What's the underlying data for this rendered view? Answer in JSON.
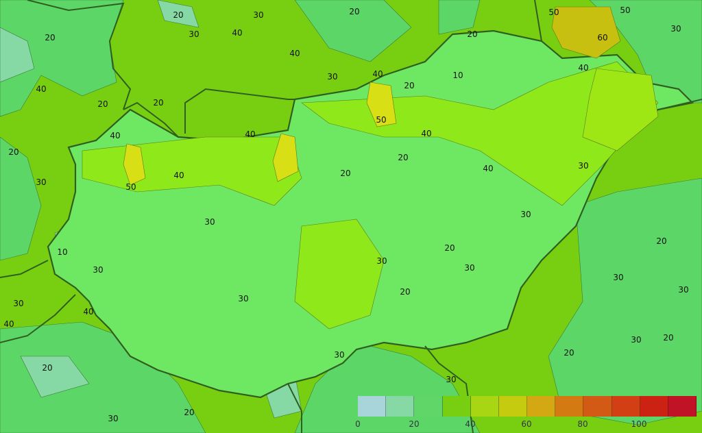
{
  "map": {
    "contour_labels": [
      "20",
      "30",
      "20",
      "30",
      "40",
      "40",
      "20",
      "50",
      "50",
      "30",
      "40",
      "20",
      "60",
      "40",
      "30",
      "20",
      "40",
      "20",
      "20",
      "50",
      "40",
      "20",
      "50",
      "40",
      "40",
      "40",
      "40",
      "30",
      "30",
      "30",
      "10",
      "30",
      "10",
      "20",
      "30",
      "20",
      "30",
      "20",
      "30",
      "20",
      "30",
      "20",
      "30",
      "30",
      "30",
      "40",
      "30",
      "20",
      "20",
      "30",
      "30",
      "20",
      "20",
      "30",
      "40"
    ],
    "colors": {
      "background": "#78cf12",
      "hungary_interior": "#6ee862",
      "low_region": "#5cd666",
      "very_low": "#86d9a5",
      "high_yellow": "#d8df14",
      "border": "#2f5f20"
    }
  },
  "legend": {
    "colors": [
      "#a8d5da",
      "#86d9a5",
      "#5fd667",
      "#78cf12",
      "#a8d612",
      "#c5cc10",
      "#d4a812",
      "#d47a12",
      "#d35a14",
      "#d23f14",
      "#cc2214",
      "#c01426"
    ],
    "ticks": [
      "0",
      "20",
      "40",
      "60",
      "80",
      "100"
    ]
  }
}
